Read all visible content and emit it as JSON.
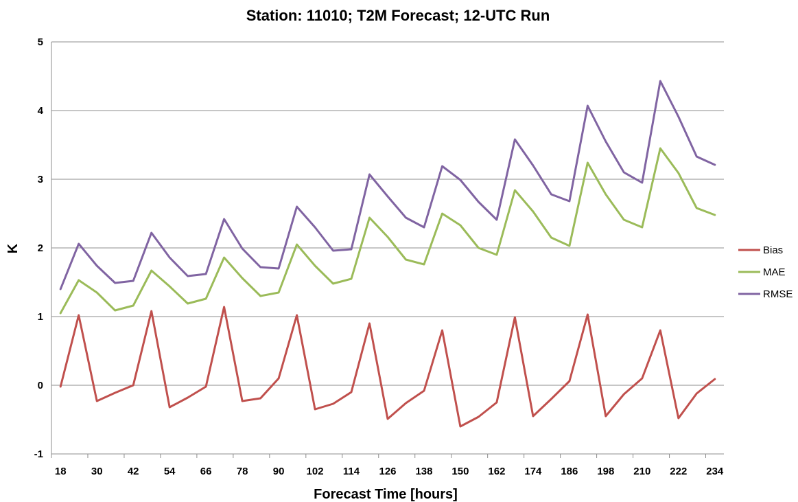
{
  "chart_data": {
    "type": "line",
    "title": "Station: 11010; T2M Forecast; 12-UTC Run",
    "xlabel": "Forecast Time [hours]",
    "ylabel": "K",
    "ylim": [
      -1,
      5
    ],
    "yticks": [
      "-1",
      "0",
      "1",
      "2",
      "3",
      "4",
      "5"
    ],
    "x": [
      18,
      24,
      30,
      36,
      42,
      48,
      54,
      60,
      66,
      72,
      78,
      84,
      90,
      96,
      102,
      108,
      114,
      120,
      126,
      132,
      138,
      144,
      150,
      156,
      162,
      168,
      174,
      180,
      186,
      192,
      198,
      204,
      210,
      216,
      222,
      228,
      234
    ],
    "xtick_labels": [
      "18",
      "30",
      "42",
      "54",
      "66",
      "78",
      "90",
      "102",
      "114",
      "126",
      "138",
      "150",
      "162",
      "174",
      "186",
      "198",
      "210",
      "222",
      "234"
    ],
    "grid": "horizontal",
    "legend_position": "right",
    "series": [
      {
        "name": "Bias",
        "color": "#c0504d",
        "values": [
          -0.02,
          1.02,
          -0.23,
          -0.11,
          0.0,
          1.08,
          -0.32,
          -0.18,
          -0.02,
          1.14,
          -0.23,
          -0.19,
          0.1,
          1.02,
          -0.35,
          -0.27,
          -0.1,
          0.9,
          -0.49,
          -0.26,
          -0.08,
          0.8,
          -0.6,
          -0.46,
          -0.25,
          0.99,
          -0.45,
          -0.2,
          0.06,
          1.03,
          -0.45,
          -0.13,
          0.1,
          0.8,
          -0.48,
          -0.12,
          0.09
        ]
      },
      {
        "name": "MAE",
        "color": "#9bbb59",
        "values": [
          1.05,
          1.53,
          1.35,
          1.09,
          1.16,
          1.67,
          1.44,
          1.19,
          1.26,
          1.86,
          1.56,
          1.3,
          1.35,
          2.05,
          1.74,
          1.48,
          1.55,
          2.44,
          2.16,
          1.83,
          1.76,
          2.5,
          2.33,
          2.0,
          1.9,
          2.84,
          2.53,
          2.15,
          2.03,
          3.24,
          2.78,
          2.41,
          2.3,
          3.45,
          3.09,
          2.58,
          2.48
        ]
      },
      {
        "name": "RMSE",
        "color": "#8064a2",
        "values": [
          1.4,
          2.06,
          1.74,
          1.49,
          1.52,
          2.22,
          1.86,
          1.59,
          1.62,
          2.42,
          1.99,
          1.72,
          1.7,
          2.6,
          2.3,
          1.96,
          1.98,
          3.07,
          2.75,
          2.44,
          2.3,
          3.19,
          2.99,
          2.67,
          2.41,
          3.58,
          3.2,
          2.78,
          2.68,
          4.07,
          3.55,
          3.1,
          2.95,
          4.43,
          3.91,
          3.33,
          3.21
        ]
      }
    ]
  }
}
